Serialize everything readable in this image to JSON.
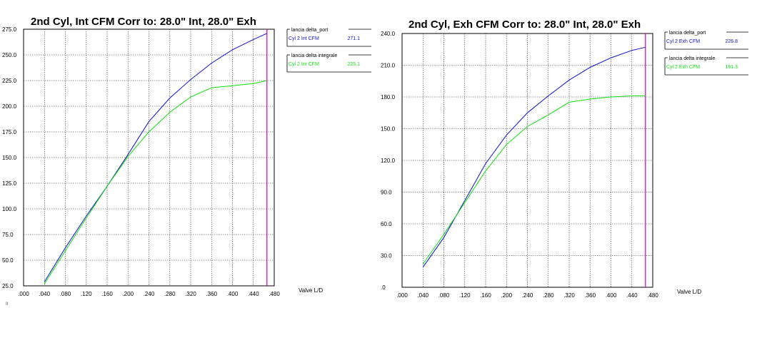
{
  "chart_data": [
    {
      "type": "line",
      "title": "2nd Cyl, Int CFM   Corr to: 28.0\" Int, 28.0\" Exh",
      "xlabel": "Valve L/D",
      "ylabel": "",
      "xlim": [
        0.0,
        0.48
      ],
      "ylim": [
        25.0,
        275.0
      ],
      "x_ticks": [
        ".000",
        ".040",
        ".080",
        ".120",
        ".160",
        ".200",
        ".240",
        ".280",
        ".320",
        ".360",
        ".400",
        ".440",
        ".480"
      ],
      "y_ticks": [
        "25.0",
        "50.0",
        "75.0",
        "100.0",
        "125.0",
        "150.0",
        "175.0",
        "200.0",
        "225.0",
        "250.0",
        "275.0"
      ],
      "grid": true,
      "marker_x": 0.466,
      "marker_color": "#cc00cc",
      "x": [
        0.04,
        0.08,
        0.12,
        0.16,
        0.2,
        0.24,
        0.28,
        0.32,
        0.36,
        0.4,
        0.44,
        0.466
      ],
      "series": [
        {
          "name": "lancia delta_port",
          "entry_label": "Cyl 2 Int CFM",
          "value_label": "271.1",
          "color": "#1010d0",
          "values": [
            29,
            62,
            93,
            122,
            153,
            185,
            208,
            226,
            242,
            255,
            265,
            271
          ]
        },
        {
          "name": "lancia delta integrale",
          "entry_label": "Cyl 2 Int CFM",
          "value_label": "225.1",
          "color": "#10e010",
          "values": [
            27,
            59,
            91,
            122,
            151,
            175,
            194,
            209,
            218,
            220,
            222,
            225
          ]
        }
      ],
      "legend_position": "right"
    },
    {
      "type": "line",
      "title": "2nd Cyl, Exh CFM   Corr to: 28.0\" Int, 28.0\" Exh",
      "xlabel": "Valve L/D",
      "ylabel": "",
      "xlim": [
        0.0,
        0.48
      ],
      "ylim": [
        0.0,
        240.0
      ],
      "x_ticks": [
        ".000",
        ".040",
        ".080",
        ".120",
        ".160",
        ".200",
        ".240",
        ".280",
        ".320",
        ".360",
        ".400",
        ".440",
        ".480"
      ],
      "y_ticks": [
        ".0",
        "30.0",
        "60.0",
        "90.0",
        "120.0",
        "150.0",
        "180.0",
        "210.0",
        "240.0"
      ],
      "grid": true,
      "marker_x": 0.466,
      "marker_color": "#cc00cc",
      "x": [
        0.04,
        0.08,
        0.12,
        0.16,
        0.2,
        0.24,
        0.28,
        0.32,
        0.36,
        0.4,
        0.44,
        0.466
      ],
      "series": [
        {
          "name": "lancia delta_port",
          "entry_label": "Cyl 2 Exh CFM",
          "value_label": "226.8",
          "color": "#1010d0",
          "values": [
            19,
            47,
            82,
            117,
            144,
            165,
            181,
            196,
            208,
            217,
            224,
            227
          ]
        },
        {
          "name": "lancia delta integrale",
          "entry_label": "Cyl 2 Exh CFM",
          "value_label": "181.3",
          "color": "#10e010",
          "values": [
            22,
            50,
            80,
            110,
            135,
            152,
            163,
            175,
            178,
            180,
            181,
            181
          ]
        }
      ],
      "legend_position": "right"
    }
  ],
  "footer_mark": "II"
}
